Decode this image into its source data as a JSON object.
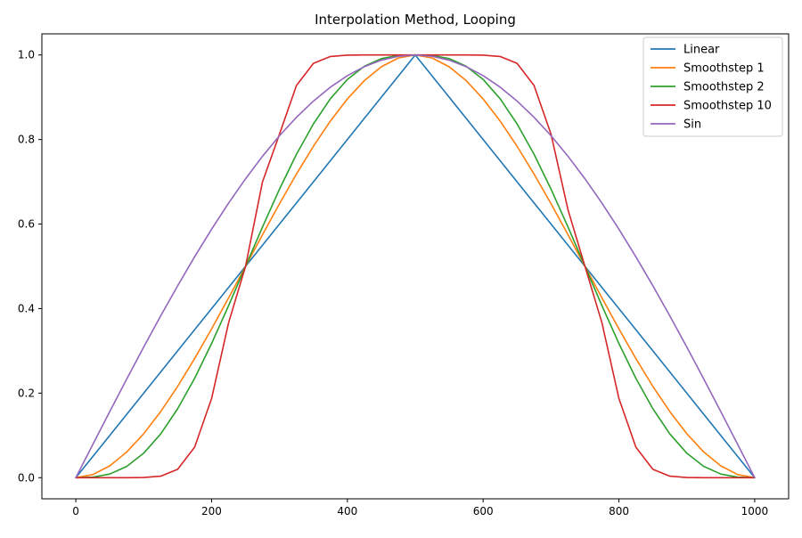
{
  "chart_data": {
    "type": "line",
    "title": "Interpolation Method, Looping",
    "xlabel": "",
    "ylabel": "",
    "xlim": [
      -50,
      1050
    ],
    "ylim": [
      -0.05,
      1.05
    ],
    "xticks": [
      0,
      200,
      400,
      600,
      800,
      1000
    ],
    "xtick_labels": [
      "0",
      "200",
      "400",
      "600",
      "800",
      "1000"
    ],
    "yticks": [
      0,
      0.2,
      0.4,
      0.6,
      0.8,
      1.0
    ],
    "ytick_labels": [
      "0.0",
      "0.2",
      "0.4",
      "0.6",
      "0.8",
      "1.0"
    ],
    "grid": false,
    "legend_position": "top-right",
    "x": [
      0,
      25,
      50,
      75,
      100,
      125,
      150,
      175,
      200,
      225,
      250,
      275,
      300,
      325,
      350,
      375,
      400,
      425,
      450,
      475,
      500,
      525,
      550,
      575,
      600,
      625,
      650,
      675,
      700,
      725,
      750,
      775,
      800,
      825,
      850,
      875,
      900,
      925,
      950,
      975,
      1000
    ],
    "series": [
      {
        "name": "Linear",
        "color": "#1f77b4",
        "values": [
          0.0,
          0.05,
          0.1,
          0.15,
          0.2,
          0.25,
          0.3,
          0.35,
          0.4,
          0.45,
          0.5,
          0.55,
          0.6,
          0.65,
          0.7,
          0.75,
          0.8,
          0.85,
          0.9,
          0.95,
          1.0,
          0.95,
          0.9,
          0.85,
          0.8,
          0.75,
          0.7,
          0.65,
          0.6,
          0.55,
          0.5,
          0.45,
          0.4,
          0.35,
          0.3,
          0.25,
          0.2,
          0.15,
          0.1,
          0.05,
          0.0
        ]
      },
      {
        "name": "Smoothstep 1",
        "color": "#ff7f0e",
        "values": [
          0.0,
          0.0073,
          0.028,
          0.0608,
          0.104,
          0.1563,
          0.216,
          0.2818,
          0.352,
          0.4253,
          0.5,
          0.5748,
          0.648,
          0.7183,
          0.784,
          0.8438,
          0.896,
          0.9393,
          0.972,
          0.9928,
          1.0,
          0.9928,
          0.972,
          0.9393,
          0.896,
          0.8438,
          0.784,
          0.7183,
          0.648,
          0.5748,
          0.5,
          0.4253,
          0.352,
          0.2818,
          0.216,
          0.1563,
          0.104,
          0.0608,
          0.028,
          0.0073,
          0.0
        ]
      },
      {
        "name": "Smoothstep 2",
        "color": "#2ca02c",
        "values": [
          0.0,
          0.0012,
          0.0086,
          0.0266,
          0.0579,
          0.1035,
          0.1631,
          0.235,
          0.3174,
          0.4069,
          0.5,
          0.5931,
          0.6826,
          0.765,
          0.8369,
          0.8965,
          0.9421,
          0.9734,
          0.9914,
          0.9988,
          1.0,
          0.9988,
          0.9914,
          0.9734,
          0.9421,
          0.8965,
          0.8369,
          0.765,
          0.6826,
          0.5931,
          0.5,
          0.4069,
          0.3174,
          0.235,
          0.1631,
          0.1035,
          0.0579,
          0.0266,
          0.0086,
          0.0012,
          0.0
        ]
      },
      {
        "name": "Smoothstep 10",
        "color": "#d62728",
        "values": [
          0.0,
          0.0,
          0.0,
          0.0,
          0.0004,
          0.0035,
          0.0197,
          0.0722,
          0.1873,
          0.3663,
          0.5,
          0.7,
          0.8127,
          0.9278,
          0.9803,
          0.9965,
          0.9996,
          1.0,
          1.0,
          1.0,
          1.0,
          1.0,
          1.0,
          1.0,
          0.9996,
          0.9965,
          0.9803,
          0.9278,
          0.8127,
          0.6337,
          0.5,
          0.3663,
          0.1873,
          0.0722,
          0.0197,
          0.0035,
          0.0004,
          0.0,
          0.0,
          0.0,
          0.0
        ]
      },
      {
        "name": "Sin",
        "color": "#9467bd",
        "values": [
          0.0,
          0.0785,
          0.1564,
          0.2334,
          0.309,
          0.3827,
          0.454,
          0.5225,
          0.5878,
          0.6494,
          0.7071,
          0.7604,
          0.809,
          0.8526,
          0.891,
          0.9239,
          0.9511,
          0.9724,
          0.9877,
          0.9969,
          1.0,
          0.9969,
          0.9877,
          0.9724,
          0.9511,
          0.9239,
          0.891,
          0.8526,
          0.809,
          0.7604,
          0.7071,
          0.6494,
          0.5878,
          0.5225,
          0.454,
          0.3827,
          0.309,
          0.2334,
          0.1564,
          0.0785,
          0.0
        ]
      }
    ]
  }
}
